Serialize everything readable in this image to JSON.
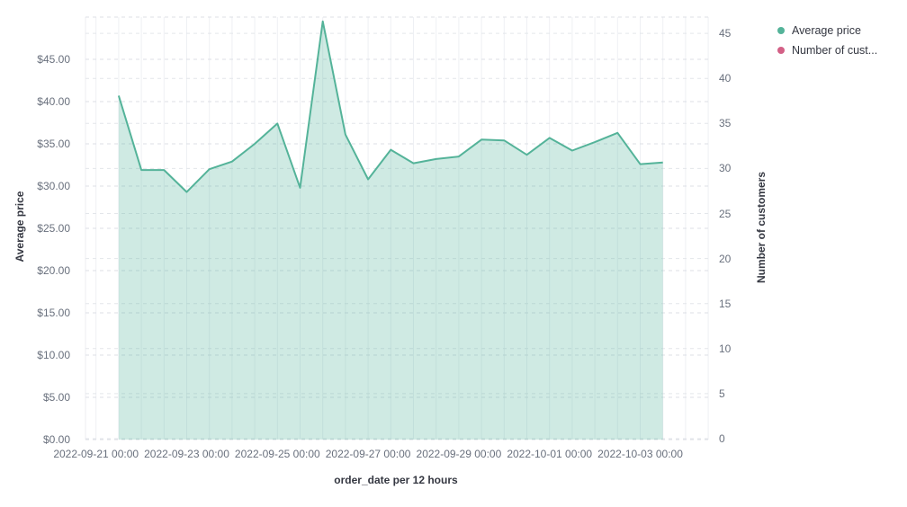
{
  "chart_data": {
    "type": "area",
    "x_axis": {
      "title": "order_date per 12 hours",
      "tick_labels": [
        "2022-09-21 00:00",
        "2022-09-23 00:00",
        "2022-09-25 00:00",
        "2022-09-27 00:00",
        "2022-09-29 00:00",
        "2022-10-01 00:00",
        "2022-10-03 00:00"
      ]
    },
    "left_axis": {
      "title": "Average price",
      "tick_labels": [
        "$0.00",
        "$5.00",
        "$10.00",
        "$15.00",
        "$20.00",
        "$25.00",
        "$30.00",
        "$35.00",
        "$40.00",
        "$45.00"
      ],
      "tick_values": [
        0,
        5,
        10,
        15,
        20,
        25,
        30,
        35,
        40,
        45
      ],
      "range": [
        0,
        50
      ]
    },
    "right_axis": {
      "title": "Number of customers",
      "tick_labels": [
        "0",
        "5",
        "10",
        "15",
        "20",
        "25",
        "30",
        "35",
        "40",
        "45"
      ],
      "tick_values": [
        0,
        5,
        10,
        15,
        20,
        25,
        30,
        35,
        40,
        45
      ],
      "range": [
        0,
        47
      ]
    },
    "legend_position": "top-right",
    "grid": true,
    "legend": [
      {
        "label": "Average price",
        "color": "#54B399"
      },
      {
        "label": "Number of cust...",
        "color": "#D36086"
      }
    ],
    "series": [
      {
        "name": "Average price",
        "axis": "left",
        "color": "#54B399",
        "x": [
          "2022-09-21 12:00",
          "2022-09-22 00:00",
          "2022-09-22 12:00",
          "2022-09-23 00:00",
          "2022-09-23 12:00",
          "2022-09-24 00:00",
          "2022-09-24 12:00",
          "2022-09-25 00:00",
          "2022-09-25 12:00",
          "2022-09-26 00:00",
          "2022-09-26 12:00",
          "2022-09-27 00:00",
          "2022-09-27 12:00",
          "2022-09-28 00:00",
          "2022-09-28 12:00",
          "2022-09-29 00:00",
          "2022-09-29 12:00",
          "2022-09-30 00:00",
          "2022-09-30 12:00",
          "2022-10-01 00:00",
          "2022-10-01 12:00",
          "2022-10-02 00:00",
          "2022-10-02 12:00",
          "2022-10-03 00:00",
          "2022-10-03 12:00"
        ],
        "values": [
          40.7,
          31.9,
          31.9,
          29.3,
          32.0,
          32.9,
          35.0,
          37.4,
          29.8,
          49.5,
          36.1,
          30.8,
          34.3,
          32.7,
          33.2,
          33.5,
          35.5,
          35.4,
          33.7,
          35.7,
          34.2,
          35.2,
          36.3,
          32.6,
          32.8
        ]
      },
      {
        "name": "Number of customers",
        "axis": "right",
        "color": "#D36086",
        "values": []
      }
    ]
  }
}
